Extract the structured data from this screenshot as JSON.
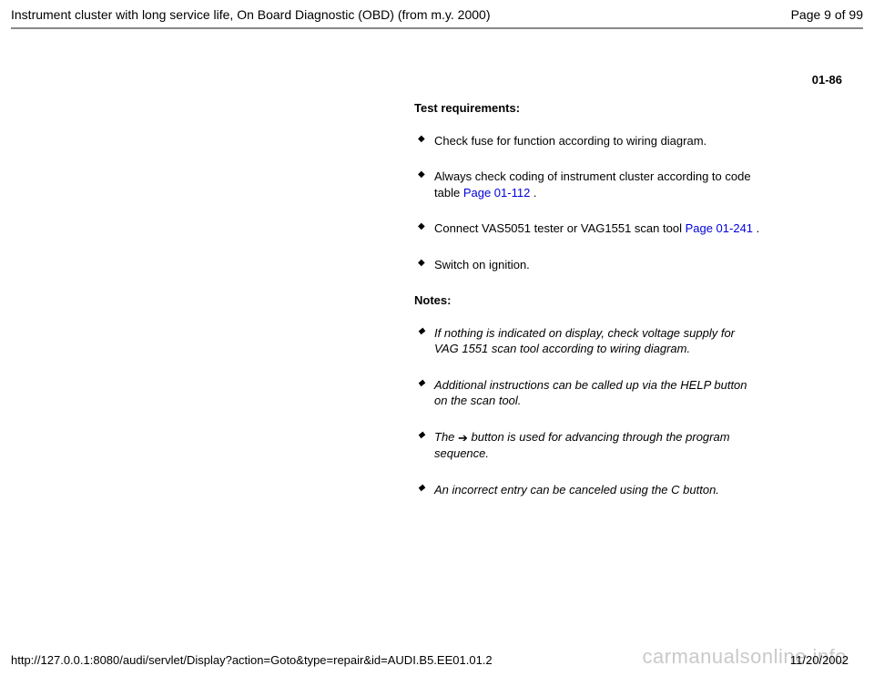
{
  "header": {
    "title": "Instrument cluster with long service life, On Board Diagnostic (OBD) (from m.y. 2000)",
    "page_label": "Page 9 of 99"
  },
  "section_number": "01-86",
  "requirements": {
    "heading": "Test requirements:",
    "items": {
      "i0": "Check fuse for function according to wiring diagram.",
      "i1_a": "Always check coding of instrument cluster according to code table  ",
      "i1_link": "Page 01-112",
      "i1_b": " .",
      "i2_a": "Connect VAS5051 tester or VAG1551 scan tool  ",
      "i2_link": "Page 01-241",
      "i2_b": " .",
      "i3": "Switch on ignition."
    }
  },
  "notes": {
    "heading": "Notes:",
    "items": {
      "n0": "If nothing is indicated on display, check voltage supply for VAG 1551 scan tool according to wiring diagram.",
      "n1": "Additional instructions can be called up via the HELP button on the scan tool.",
      "n2_a": "The ",
      "n2_arrow": "➔",
      "n2_b": " button is used for advancing through the program sequence.",
      "n3": "An incorrect entry can be canceled using the C button."
    }
  },
  "footer": {
    "url": "http://127.0.0.1:8080/audi/servlet/Display?action=Goto&type=repair&id=AUDI.B5.EE01.01.2",
    "date": "11/20/2002"
  },
  "watermark": "carmanualsonline.info"
}
